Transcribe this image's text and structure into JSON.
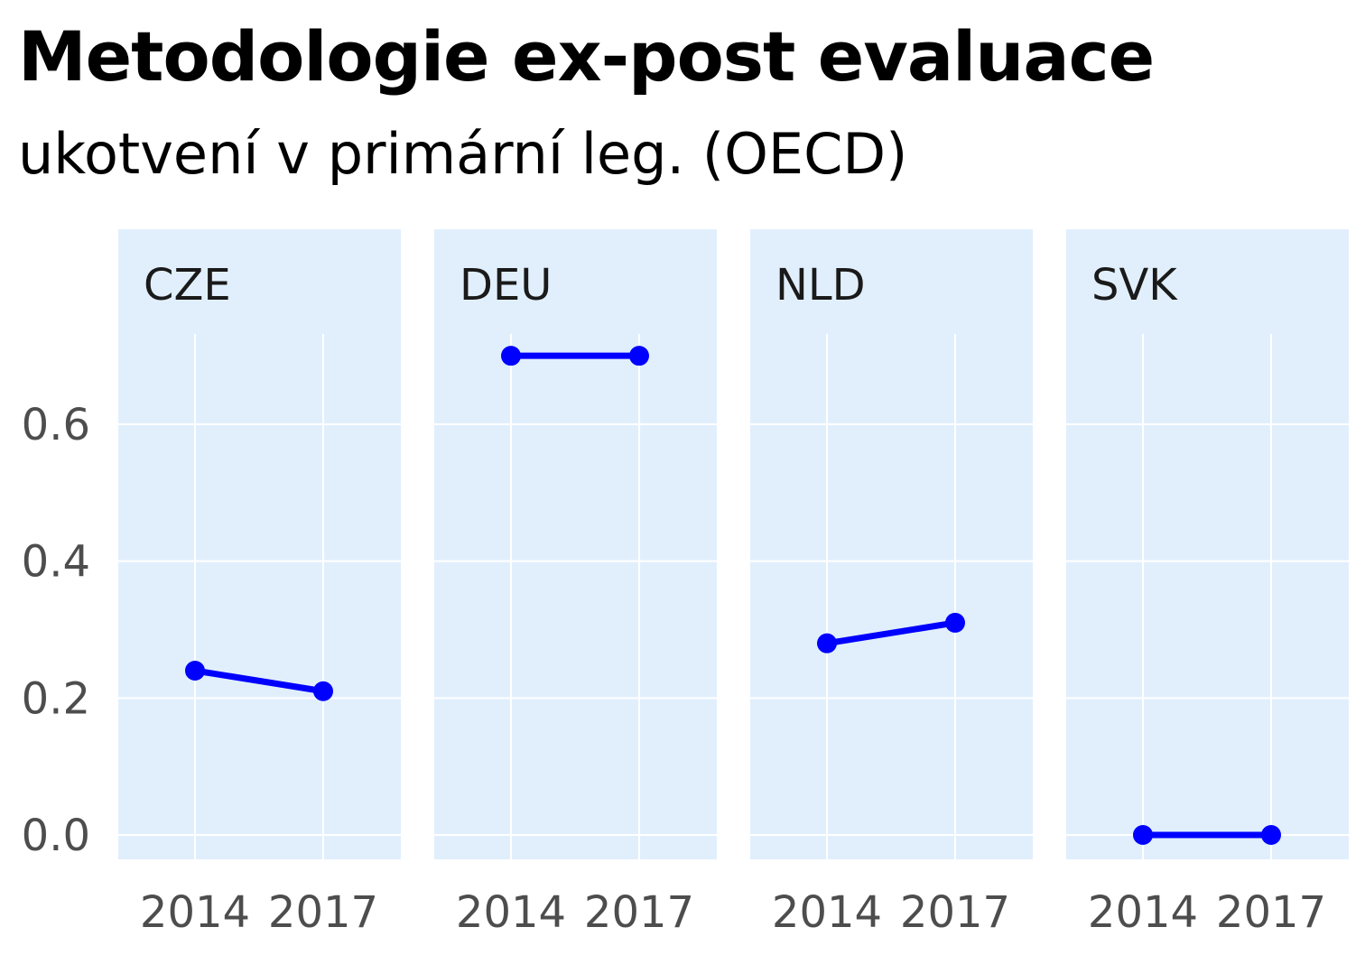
{
  "chart_data": {
    "type": "line",
    "title": "Metodologie ex-post evaluace",
    "subtitle": "ukotvení v primární leg. (OECD)",
    "xlabel": "",
    "ylabel": "",
    "x": [
      "2014",
      "2017"
    ],
    "ylim": [
      -0.04,
      0.83
    ],
    "yticks": [
      "0.0",
      "0.2",
      "0.4",
      "0.6"
    ],
    "grid": true,
    "colors": {
      "line": "#0000ff",
      "panel": "#e1effd",
      "grid": "#ffffff"
    },
    "facets": [
      {
        "name": "CZE",
        "values": [
          0.24,
          0.21
        ]
      },
      {
        "name": "DEU",
        "values": [
          0.7,
          0.7
        ]
      },
      {
        "name": "NLD",
        "values": [
          0.28,
          0.31
        ]
      },
      {
        "name": "SVK",
        "values": [
          0.0,
          0.0
        ]
      }
    ]
  }
}
